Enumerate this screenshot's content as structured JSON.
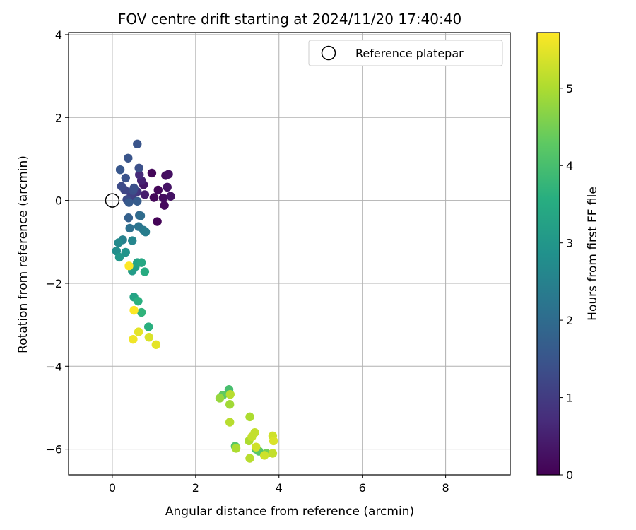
{
  "chart_data": {
    "type": "scatter",
    "title": "FOV centre drift starting at 2024/11/20 17:40:40",
    "xlabel": "Angular distance from reference (arcmin)",
    "ylabel": "Rotation from reference (arcmin)",
    "xlim": [
      -1.05,
      9.55
    ],
    "ylim": [
      -6.62,
      4.05
    ],
    "xticks": [
      0,
      2,
      4,
      6,
      8
    ],
    "yticks": [
      -6,
      -4,
      -2,
      0,
      2,
      4
    ],
    "grid": true,
    "legend": {
      "position": "top-right",
      "entries": [
        "Reference platepar"
      ]
    },
    "reference_point": {
      "x": 0,
      "y": 0
    },
    "colorbar": {
      "label": "Hours from first FF file",
      "colormap": "viridis",
      "range": [
        0,
        5.72
      ],
      "ticks": [
        0,
        1,
        2,
        3,
        4,
        5
      ]
    },
    "points": [
      {
        "x": 0.95,
        "y": 0.66,
        "c": 0.1
      },
      {
        "x": 1.1,
        "y": 0.25,
        "c": 0.1
      },
      {
        "x": 1.0,
        "y": 0.07,
        "c": 0.1
      },
      {
        "x": 1.08,
        "y": -0.51,
        "c": 0.05
      },
      {
        "x": 1.22,
        "y": 0.06,
        "c": 0.2
      },
      {
        "x": 1.25,
        "y": -0.12,
        "c": 0.15
      },
      {
        "x": 1.28,
        "y": 0.6,
        "c": 0.2
      },
      {
        "x": 1.35,
        "y": 0.63,
        "c": 0.25
      },
      {
        "x": 1.32,
        "y": 0.32,
        "c": 0.3
      },
      {
        "x": 1.4,
        "y": 0.1,
        "c": 0.3
      },
      {
        "x": 0.75,
        "y": 0.38,
        "c": 0.35
      },
      {
        "x": 0.78,
        "y": 0.14,
        "c": 0.45
      },
      {
        "x": 0.7,
        "y": 0.48,
        "c": 0.55
      },
      {
        "x": 0.65,
        "y": 0.62,
        "c": 0.7
      },
      {
        "x": 0.6,
        "y": 0.21,
        "c": 0.8
      },
      {
        "x": 0.55,
        "y": 0.2,
        "c": 0.9
      },
      {
        "x": 0.48,
        "y": 0.1,
        "c": 1.0
      },
      {
        "x": 0.45,
        "y": 0.15,
        "c": 1.1
      },
      {
        "x": 0.3,
        "y": 0.25,
        "c": 1.2
      },
      {
        "x": 0.22,
        "y": 0.34,
        "c": 1.3
      },
      {
        "x": 0.35,
        "y": 0.02,
        "c": 1.3
      },
      {
        "x": 0.5,
        "y": 0.24,
        "c": 1.35
      },
      {
        "x": 0.52,
        "y": 0.3,
        "c": 1.4
      },
      {
        "x": 0.64,
        "y": 0.78,
        "c": 1.4
      },
      {
        "x": 0.32,
        "y": 0.54,
        "c": 1.45
      },
      {
        "x": 0.6,
        "y": 1.36,
        "c": 1.5
      },
      {
        "x": 0.38,
        "y": 1.02,
        "c": 1.5
      },
      {
        "x": 0.19,
        "y": 0.74,
        "c": 1.55
      },
      {
        "x": 0.4,
        "y": -0.05,
        "c": 1.6
      },
      {
        "x": 0.6,
        "y": -0.02,
        "c": 1.65
      },
      {
        "x": 0.39,
        "y": -0.42,
        "c": 1.75
      },
      {
        "x": 0.65,
        "y": -0.36,
        "c": 1.85
      },
      {
        "x": 0.68,
        "y": -0.37,
        "c": 2.0
      },
      {
        "x": 0.42,
        "y": -0.67,
        "c": 2.1
      },
      {
        "x": 0.63,
        "y": -0.63,
        "c": 2.2
      },
      {
        "x": 0.75,
        "y": -0.72,
        "c": 2.3
      },
      {
        "x": 0.8,
        "y": -0.76,
        "c": 2.4
      },
      {
        "x": 0.25,
        "y": -0.95,
        "c": 2.5
      },
      {
        "x": 0.48,
        "y": -0.97,
        "c": 2.6
      },
      {
        "x": 0.15,
        "y": -1.02,
        "c": 2.7
      },
      {
        "x": 0.1,
        "y": -1.22,
        "c": 2.8
      },
      {
        "x": 0.32,
        "y": -1.25,
        "c": 2.9
      },
      {
        "x": 0.17,
        "y": -1.37,
        "c": 3.0
      },
      {
        "x": 0.48,
        "y": -1.7,
        "c": 3.1
      },
      {
        "x": 0.55,
        "y": -1.6,
        "c": 3.2
      },
      {
        "x": 0.6,
        "y": -1.5,
        "c": 3.3
      },
      {
        "x": 0.7,
        "y": -1.5,
        "c": 3.4
      },
      {
        "x": 0.78,
        "y": -1.72,
        "c": 3.5
      },
      {
        "x": 0.52,
        "y": -2.33,
        "c": 3.3
      },
      {
        "x": 0.62,
        "y": -2.43,
        "c": 3.6
      },
      {
        "x": 0.7,
        "y": -2.7,
        "c": 3.7
      },
      {
        "x": 0.87,
        "y": -3.05,
        "c": 3.6
      },
      {
        "x": 2.8,
        "y": -4.56,
        "c": 4.0
      },
      {
        "x": 2.65,
        "y": -4.7,
        "c": 4.3
      },
      {
        "x": 2.95,
        "y": -5.93,
        "c": 4.2
      },
      {
        "x": 3.45,
        "y": -6.0,
        "c": 4.1
      },
      {
        "x": 3.52,
        "y": -6.05,
        "c": 4.2
      },
      {
        "x": 3.7,
        "y": -6.1,
        "c": 4.5
      },
      {
        "x": 2.58,
        "y": -4.77,
        "c": 4.8
      },
      {
        "x": 2.82,
        "y": -4.92,
        "c": 4.9
      },
      {
        "x": 2.83,
        "y": -4.68,
        "c": 5.1
      },
      {
        "x": 2.82,
        "y": -5.35,
        "c": 5.1
      },
      {
        "x": 2.97,
        "y": -5.98,
        "c": 5.0
      },
      {
        "x": 3.3,
        "y": -5.22,
        "c": 5.0
      },
      {
        "x": 3.28,
        "y": -5.8,
        "c": 5.0
      },
      {
        "x": 3.35,
        "y": -5.7,
        "c": 5.2
      },
      {
        "x": 3.42,
        "y": -5.6,
        "c": 5.2
      },
      {
        "x": 3.45,
        "y": -5.95,
        "c": 5.3
      },
      {
        "x": 3.3,
        "y": -6.22,
        "c": 5.1
      },
      {
        "x": 3.65,
        "y": -6.15,
        "c": 5.3
      },
      {
        "x": 3.85,
        "y": -6.1,
        "c": 5.2
      },
      {
        "x": 3.85,
        "y": -5.68,
        "c": 5.3
      },
      {
        "x": 3.87,
        "y": -5.8,
        "c": 5.4
      },
      {
        "x": 0.88,
        "y": -3.3,
        "c": 5.4
      },
      {
        "x": 1.05,
        "y": -3.48,
        "c": 5.5
      },
      {
        "x": 0.63,
        "y": -3.17,
        "c": 5.5
      },
      {
        "x": 0.5,
        "y": -3.35,
        "c": 5.6
      },
      {
        "x": 0.52,
        "y": -2.65,
        "c": 5.7
      },
      {
        "x": 0.4,
        "y": -1.58,
        "c": 5.72
      }
    ]
  }
}
